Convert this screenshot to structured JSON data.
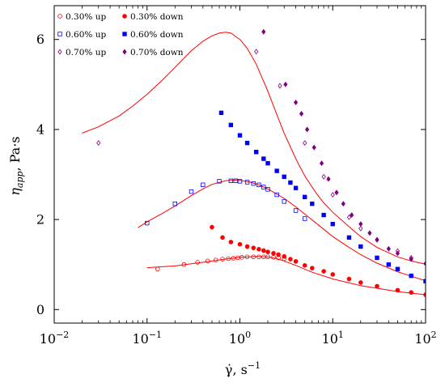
{
  "chart_data": {
    "type": "scatter",
    "xscale": "log",
    "xlim": [
      0.01,
      100
    ],
    "ylim": [
      -0.3,
      6.75
    ],
    "xticks": [
      0.01,
      0.1,
      1,
      10,
      100
    ],
    "xtick_labels": [
      {
        "base": "10",
        "exp": "−2"
      },
      {
        "base": "10",
        "exp": "−1"
      },
      {
        "base": "10",
        "exp": "0"
      },
      {
        "base": "10",
        "exp": "1"
      },
      {
        "base": "10",
        "exp": "2"
      }
    ],
    "yticks": [
      0,
      2,
      4,
      6
    ],
    "ytick_labels": [
      "0",
      "2",
      "4",
      "6"
    ],
    "xlabel": {
      "main": "γ̇, s",
      "exp": "−1"
    },
    "ylabel": {
      "main": "η",
      "sub": "app",
      "tail": ", Pa·s"
    },
    "legend": {
      "placement": "top-left",
      "entries": [
        [
          "0.30% up",
          "0.30% down"
        ],
        [
          "0.60% up",
          "0.60% down"
        ],
        [
          "0.70% up",
          "0.70% down"
        ]
      ]
    },
    "series": [
      {
        "name": "0.30% up",
        "marker": "circle-open",
        "color": "#ff0000",
        "x": [
          0.13,
          0.25,
          0.35,
          0.45,
          0.55,
          0.65,
          0.75,
          0.85,
          0.95,
          1.05,
          1.2,
          1.4,
          1.6,
          1.8,
          2.0,
          2.3,
          2.6,
          3.0
        ],
        "y": [
          0.9,
          1.0,
          1.05,
          1.08,
          1.1,
          1.12,
          1.13,
          1.14,
          1.15,
          1.16,
          1.17,
          1.17,
          1.17,
          1.17,
          1.17,
          1.16,
          1.15,
          1.13
        ]
      },
      {
        "name": "0.30% down",
        "marker": "circle-filled",
        "color": "#ff0000",
        "x": [
          0.5,
          0.65,
          0.8,
          1.0,
          1.2,
          1.4,
          1.6,
          1.8,
          2.0,
          2.3,
          2.6,
          3.0,
          3.5,
          4.0,
          5.0,
          6.0,
          8.0,
          10.0,
          15.0,
          20.0,
          30.0,
          50.0,
          70.0,
          100.0
        ],
        "y": [
          1.83,
          1.6,
          1.5,
          1.45,
          1.4,
          1.37,
          1.34,
          1.31,
          1.28,
          1.25,
          1.22,
          1.18,
          1.12,
          1.07,
          0.98,
          0.92,
          0.85,
          0.78,
          0.68,
          0.6,
          0.52,
          0.43,
          0.38,
          0.33
        ]
      },
      {
        "name": "0.60% up",
        "marker": "square-open",
        "color": "#0000ff",
        "x": [
          0.1,
          0.2,
          0.3,
          0.4,
          0.6,
          0.8,
          0.9,
          1.0,
          1.2,
          1.4,
          1.6,
          1.8,
          2.0,
          2.5,
          3.0,
          4.0,
          5.0
        ],
        "y": [
          1.92,
          2.35,
          2.62,
          2.77,
          2.85,
          2.86,
          2.86,
          2.85,
          2.83,
          2.8,
          2.77,
          2.72,
          2.67,
          2.55,
          2.4,
          2.2,
          2.02
        ]
      },
      {
        "name": "0.60% down",
        "marker": "square-filled",
        "color": "#0000ff",
        "x": [
          0.63,
          0.8,
          1.0,
          1.2,
          1.5,
          1.8,
          2.0,
          2.5,
          3.0,
          3.5,
          4.0,
          5.0,
          6.0,
          8.0,
          10.0,
          15.0,
          20.0,
          30.0,
          40.0,
          50.0,
          70.0,
          100.0
        ],
        "y": [
          4.37,
          4.1,
          3.87,
          3.7,
          3.5,
          3.35,
          3.25,
          3.08,
          2.95,
          2.82,
          2.7,
          2.5,
          2.35,
          2.1,
          1.9,
          1.6,
          1.4,
          1.15,
          1.0,
          0.9,
          0.75,
          0.63
        ]
      },
      {
        "name": "0.70% up",
        "marker": "diamond-open",
        "color": "#800080",
        "x": [
          0.03,
          1.5,
          2.7,
          5.0,
          8.0,
          10.0,
          15.0,
          20.0,
          30.0,
          50.0,
          70.0
        ],
        "y": [
          3.7,
          5.73,
          4.97,
          3.7,
          2.95,
          2.55,
          2.05,
          1.8,
          1.55,
          1.3,
          1.15
        ]
      },
      {
        "name": "0.70% down",
        "marker": "diamond-filled",
        "color": "#800080",
        "x": [
          1.8,
          3.1,
          4.0,
          4.6,
          5.3,
          6.3,
          7.6,
          9.0,
          11.0,
          13.0,
          16.0,
          20.0,
          25.0,
          30.0,
          40.0,
          50.0,
          70.0,
          100.0
        ],
        "y": [
          6.17,
          5.0,
          4.6,
          4.35,
          4.0,
          3.6,
          3.25,
          2.9,
          2.6,
          2.35,
          2.1,
          1.9,
          1.7,
          1.55,
          1.35,
          1.25,
          1.12,
          1.02
        ]
      }
    ],
    "fits": [
      {
        "color": "#ff0000",
        "x": [
          0.1,
          0.2,
          0.4,
          0.7,
          1.0,
          1.5,
          2.0,
          2.5,
          3.0,
          4.0,
          6.0,
          10.0,
          20.0,
          50.0,
          100.0
        ],
        "y": [
          0.93,
          0.97,
          1.05,
          1.12,
          1.16,
          1.18,
          1.17,
          1.13,
          1.08,
          0.98,
          0.83,
          0.68,
          0.53,
          0.4,
          0.33
        ]
      },
      {
        "color": "#ff0000",
        "x": [
          0.08,
          0.1,
          0.15,
          0.2,
          0.3,
          0.4,
          0.5,
          0.7,
          0.9,
          1.0,
          1.3,
          1.6,
          2.0,
          3.0,
          4.0,
          5.0,
          7.0,
          10.0,
          15.0,
          20.0,
          30.0,
          50.0,
          70.0,
          100.0
        ],
        "y": [
          1.82,
          1.95,
          2.15,
          2.3,
          2.53,
          2.68,
          2.78,
          2.86,
          2.88,
          2.87,
          2.83,
          2.77,
          2.68,
          2.47,
          2.28,
          2.12,
          1.88,
          1.62,
          1.38,
          1.22,
          1.03,
          0.84,
          0.74,
          0.64
        ]
      },
      {
        "color": "#ff0000",
        "x": [
          0.02,
          0.03,
          0.05,
          0.07,
          0.1,
          0.15,
          0.2,
          0.3,
          0.4,
          0.5,
          0.6,
          0.7,
          0.8,
          1.0,
          1.2,
          1.5,
          2.0,
          2.5,
          3.0,
          4.0,
          5.0,
          6.0,
          7.0,
          8.0,
          10.0,
          15.0,
          20.0,
          30.0,
          50.0,
          70.0,
          100.0
        ],
        "y": [
          3.92,
          4.06,
          4.3,
          4.52,
          4.78,
          5.12,
          5.38,
          5.75,
          5.96,
          6.08,
          6.14,
          6.16,
          6.14,
          6.0,
          5.8,
          5.45,
          4.85,
          4.33,
          3.92,
          3.35,
          2.97,
          2.72,
          2.52,
          2.37,
          2.16,
          1.84,
          1.62,
          1.38,
          1.17,
          1.08,
          1.01
        ]
      }
    ]
  }
}
